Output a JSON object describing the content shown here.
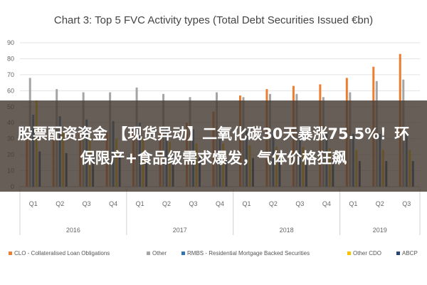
{
  "chart_data": {
    "type": "bar",
    "title": "Chart 3: Top 5 FVC Activity types (Total Debt Securities Issued €bn)",
    "xlabel": "",
    "ylabel": "",
    "ylim": [
      0,
      90
    ],
    "yticks": [
      0,
      10,
      20,
      30,
      40,
      50,
      60,
      70,
      80,
      90
    ],
    "grid": true,
    "legend_position": "bottom",
    "categories": [
      "Q1",
      "Q2",
      "Q3",
      "Q4",
      "Q1",
      "Q2",
      "Q3",
      "Q4",
      "Q1",
      "Q2",
      "Q3",
      "Q4",
      "Q1",
      "Q2",
      "Q3"
    ],
    "groups": [
      {
        "label": "2016",
        "count": 4
      },
      {
        "label": "2017",
        "count": 4
      },
      {
        "label": "2018",
        "count": 4
      },
      {
        "label": "2019",
        "count": 3
      }
    ],
    "series": [
      {
        "name": "CLO - Collateralised Loan Obligations",
        "color": "#ed7d31",
        "values": [
          30,
          32,
          34,
          34,
          35,
          38,
          40,
          47,
          57,
          61,
          63,
          64,
          68,
          75,
          83
        ]
      },
      {
        "name": "Other",
        "color": "#a5a5a5",
        "values": [
          68,
          61,
          59,
          59,
          62,
          58,
          56,
          59,
          56,
          58,
          58,
          56,
          59,
          66,
          67
        ]
      },
      {
        "name": "RMBS - Residential Mortgage Backed Securities",
        "color": "#2e75b6",
        "values": [
          45,
          44,
          42,
          41,
          40,
          37,
          36,
          36,
          35,
          35,
          35,
          34,
          33,
          33,
          33
        ]
      },
      {
        "name": "Other CDO",
        "color": "#ffc000",
        "values": [
          54,
          34,
          32,
          30,
          30,
          28,
          27,
          27,
          26,
          25,
          25,
          24,
          23,
          23,
          23
        ]
      },
      {
        "name": "ABCP",
        "color": "#264478",
        "values": [
          22,
          21,
          20,
          20,
          19,
          19,
          18,
          18,
          18,
          17,
          17,
          17,
          16,
          16,
          16
        ]
      }
    ]
  },
  "overlay": {
    "text": "股票配资资金 【现货异动】二氧化碳30天暴涨75.5%！环保限产+食品级需求爆发，气体价格狂飙"
  }
}
